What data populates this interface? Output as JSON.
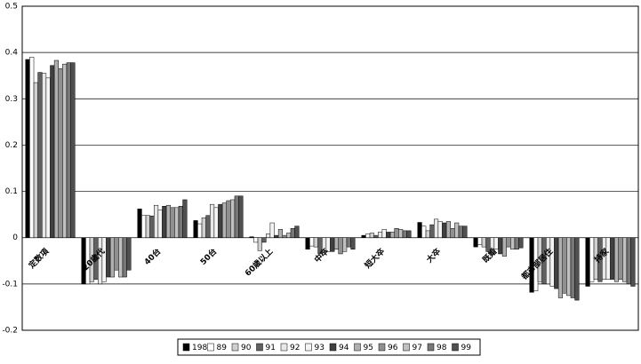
{
  "chart_data": {
    "type": "bar",
    "categories": [
      "定数項",
      "20歳代",
      "40台",
      "50台",
      "60歳以上",
      "中卒",
      "短大卒",
      "大卒",
      "既婚",
      "都市部居住",
      "持家"
    ],
    "series": [
      {
        "name": "1988",
        "color": "#000000",
        "values": [
          0.385,
          -0.1,
          0.062,
          0.037,
          0.002,
          -0.025,
          0.005,
          0.033,
          -0.02,
          -0.118,
          -0.105
        ]
      },
      {
        "name": "89",
        "color": "#ffffff",
        "values": [
          0.39,
          -0.1,
          0.048,
          0.03,
          -0.01,
          -0.018,
          0.008,
          0.025,
          -0.015,
          -0.115,
          -0.095
        ]
      },
      {
        "name": "90",
        "color": "#d0d0d0",
        "values": [
          0.335,
          -0.095,
          0.048,
          0.043,
          -0.028,
          -0.02,
          0.01,
          0.015,
          -0.02,
          -0.095,
          -0.09
        ]
      },
      {
        "name": "91",
        "color": "#606060",
        "values": [
          0.357,
          -0.09,
          0.047,
          0.048,
          -0.01,
          -0.035,
          0.005,
          0.028,
          -0.03,
          -0.1,
          -0.095
        ]
      },
      {
        "name": "92",
        "color": "#e8e8e8",
        "values": [
          0.355,
          -0.1,
          0.07,
          0.072,
          0.008,
          -0.03,
          0.012,
          0.04,
          -0.035,
          -0.1,
          -0.09
        ]
      },
      {
        "name": "93",
        "color": "#f4f4f4",
        "values": [
          0.345,
          -0.095,
          0.06,
          0.065,
          0.032,
          -0.03,
          0.018,
          0.035,
          -0.025,
          -0.105,
          -0.09
        ]
      },
      {
        "name": "94",
        "color": "#404040",
        "values": [
          0.372,
          -0.085,
          0.068,
          0.072,
          0.005,
          -0.03,
          0.012,
          0.032,
          -0.035,
          -0.11,
          -0.09
        ]
      },
      {
        "name": "95",
        "color": "#b0b0b0",
        "values": [
          0.383,
          -0.085,
          0.07,
          0.075,
          0.018,
          -0.025,
          0.012,
          0.035,
          -0.04,
          -0.13,
          -0.095
        ]
      },
      {
        "name": "96",
        "color": "#909090",
        "values": [
          0.365,
          -0.07,
          0.065,
          0.08,
          0.005,
          -0.035,
          0.02,
          0.02,
          -0.02,
          -0.12,
          -0.09
        ]
      },
      {
        "name": "97",
        "color": "#c0c0c0",
        "values": [
          0.375,
          -0.085,
          0.065,
          0.082,
          0.01,
          -0.03,
          0.018,
          0.032,
          -0.025,
          -0.125,
          -0.095
        ]
      },
      {
        "name": "98",
        "color": "#787878",
        "values": [
          0.378,
          -0.085,
          0.068,
          0.09,
          0.02,
          -0.02,
          0.015,
          0.025,
          -0.025,
          -0.13,
          -0.1
        ]
      },
      {
        "name": "99",
        "color": "#505050",
        "values": [
          0.378,
          -0.07,
          0.082,
          0.09,
          0.025,
          -0.025,
          0.015,
          0.025,
          -0.022,
          -0.135,
          -0.105
        ]
      }
    ],
    "ylim": [
      -0.2,
      0.5
    ],
    "yticks": [
      -0.2,
      -0.1,
      0,
      0.1,
      0.2,
      0.3,
      0.4,
      0.5
    ],
    "grid": true,
    "legend": "bottom"
  }
}
